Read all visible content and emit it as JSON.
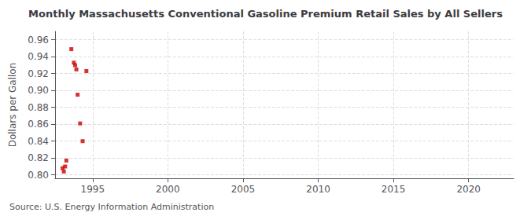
{
  "chart_data": {
    "type": "scatter",
    "title": "Monthly Massachusetts Conventional Gasoline Premium Retail Sales by All Sellers",
    "ylabel": "Dollars per Gallon",
    "annotations": [
      "Source: U.S. Energy Information Administration"
    ],
    "x": [
      1993.0,
      1993.083,
      1993.167,
      1993.25,
      1993.583,
      1993.75,
      1993.833,
      1993.917,
      1994.0,
      1994.167,
      1994.333,
      1994.583
    ],
    "values": [
      0.808,
      0.804,
      0.81,
      0.817,
      0.949,
      0.933,
      0.93,
      0.925,
      0.895,
      0.861,
      0.84,
      0.923
    ],
    "color": "#cc0000",
    "marker": "square",
    "xlim": [
      1992.5,
      2023
    ],
    "xticks": [
      1995,
      2000,
      2005,
      2010,
      2015,
      2020
    ],
    "ylim": [
      0.796,
      0.97
    ],
    "yticks": [
      {
        "value": 0.8,
        "label": "0.80"
      },
      0.82,
      0.84,
      0.86,
      0.88,
      {
        "value": 0.9,
        "label": "0.90"
      },
      0.92,
      0.94,
      0.96
    ],
    "grid": true
  }
}
